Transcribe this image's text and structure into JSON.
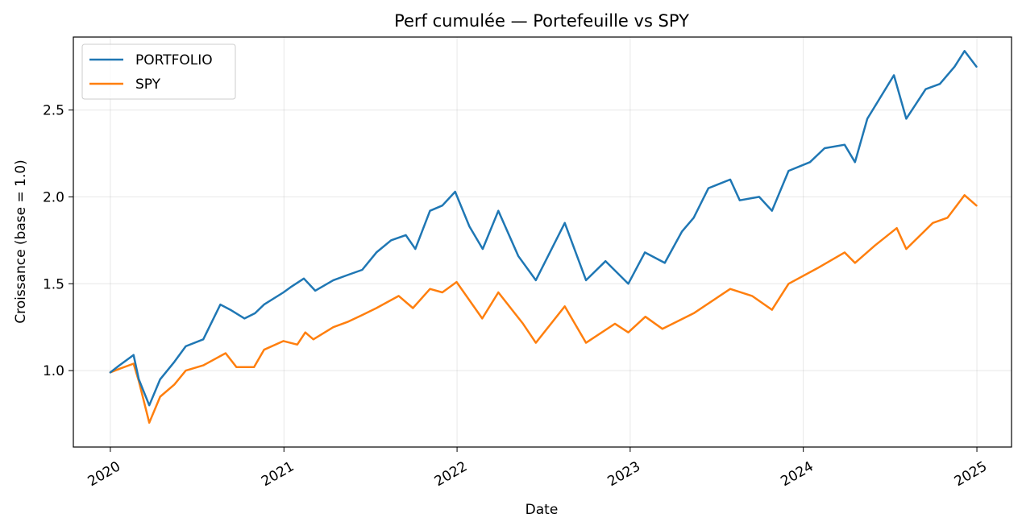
{
  "chart_data": {
    "type": "line",
    "title": "Perf cumulée — Portefeuille vs SPY",
    "xlabel": "Date",
    "ylabel": "Croissance (base = 1.0)",
    "xlim": [
      "2019-10-15",
      "2025-03-15"
    ],
    "ylim": [
      0.56,
      2.92
    ],
    "grid": true,
    "legend_position": "top-left",
    "x_ticks": [
      "2020",
      "2021",
      "2022",
      "2023",
      "2024",
      "2025"
    ],
    "y_ticks": [
      "1.0",
      "1.5",
      "2.0",
      "2.5"
    ],
    "series": [
      {
        "name": "PORTFOLIO",
        "color": "#1f77b4",
        "points": [
          [
            "2020-01-01",
            0.99
          ],
          [
            "2020-01-20",
            1.03
          ],
          [
            "2020-02-19",
            1.09
          ],
          [
            "2020-03-01",
            0.95
          ],
          [
            "2020-03-23",
            0.8
          ],
          [
            "2020-04-15",
            0.95
          ],
          [
            "2020-05-15",
            1.05
          ],
          [
            "2020-06-08",
            1.14
          ],
          [
            "2020-07-15",
            1.18
          ],
          [
            "2020-08-20",
            1.38
          ],
          [
            "2020-09-10",
            1.35
          ],
          [
            "2020-10-10",
            1.3
          ],
          [
            "2020-11-01",
            1.33
          ],
          [
            "2020-11-20",
            1.38
          ],
          [
            "2020-12-31",
            1.45
          ],
          [
            "2021-01-15",
            1.48
          ],
          [
            "2021-02-12",
            1.53
          ],
          [
            "2021-03-08",
            1.46
          ],
          [
            "2021-04-15",
            1.52
          ],
          [
            "2021-05-15",
            1.55
          ],
          [
            "2021-06-15",
            1.58
          ],
          [
            "2021-07-15",
            1.68
          ],
          [
            "2021-08-15",
            1.75
          ],
          [
            "2021-09-15",
            1.78
          ],
          [
            "2021-10-05",
            1.7
          ],
          [
            "2021-11-05",
            1.92
          ],
          [
            "2021-12-01",
            1.95
          ],
          [
            "2021-12-28",
            2.03
          ],
          [
            "2022-01-27",
            1.83
          ],
          [
            "2022-02-24",
            1.7
          ],
          [
            "2022-03-29",
            1.92
          ],
          [
            "2022-05-10",
            1.66
          ],
          [
            "2022-06-16",
            1.52
          ],
          [
            "2022-08-16",
            1.85
          ],
          [
            "2022-09-30",
            1.52
          ],
          [
            "2022-11-10",
            1.63
          ],
          [
            "2022-12-28",
            1.5
          ],
          [
            "2023-02-01",
            1.68
          ],
          [
            "2023-03-15",
            1.62
          ],
          [
            "2023-04-20",
            1.8
          ],
          [
            "2023-05-15",
            1.88
          ],
          [
            "2023-06-15",
            2.05
          ],
          [
            "2023-07-31",
            2.1
          ],
          [
            "2023-08-20",
            1.98
          ],
          [
            "2023-09-30",
            2.0
          ],
          [
            "2023-10-27",
            1.92
          ],
          [
            "2023-12-01",
            2.15
          ],
          [
            "2024-01-15",
            2.2
          ],
          [
            "2024-02-15",
            2.28
          ],
          [
            "2024-03-28",
            2.3
          ],
          [
            "2024-04-19",
            2.2
          ],
          [
            "2024-05-15",
            2.45
          ],
          [
            "2024-07-10",
            2.7
          ],
          [
            "2024-08-05",
            2.45
          ],
          [
            "2024-09-15",
            2.62
          ],
          [
            "2024-10-15",
            2.65
          ],
          [
            "2024-11-15",
            2.75
          ],
          [
            "2024-12-06",
            2.84
          ],
          [
            "2024-12-31",
            2.75
          ]
        ]
      },
      {
        "name": "SPY",
        "color": "#ff7f0e",
        "points": [
          [
            "2020-01-01",
            0.99
          ],
          [
            "2020-01-20",
            1.01
          ],
          [
            "2020-02-19",
            1.04
          ],
          [
            "2020-03-01",
            0.94
          ],
          [
            "2020-03-23",
            0.7
          ],
          [
            "2020-04-15",
            0.85
          ],
          [
            "2020-05-15",
            0.92
          ],
          [
            "2020-06-08",
            1.0
          ],
          [
            "2020-07-15",
            1.03
          ],
          [
            "2020-08-31",
            1.1
          ],
          [
            "2020-09-23",
            1.02
          ],
          [
            "2020-10-30",
            1.02
          ],
          [
            "2020-11-20",
            1.12
          ],
          [
            "2020-12-31",
            1.17
          ],
          [
            "2021-01-29",
            1.15
          ],
          [
            "2021-02-15",
            1.22
          ],
          [
            "2021-03-04",
            1.18
          ],
          [
            "2021-04-15",
            1.25
          ],
          [
            "2021-05-15",
            1.28
          ],
          [
            "2021-06-15",
            1.32
          ],
          [
            "2021-07-15",
            1.36
          ],
          [
            "2021-08-31",
            1.43
          ],
          [
            "2021-09-30",
            1.36
          ],
          [
            "2021-11-05",
            1.47
          ],
          [
            "2021-12-01",
            1.45
          ],
          [
            "2021-12-31",
            1.51
          ],
          [
            "2022-02-23",
            1.3
          ],
          [
            "2022-03-29",
            1.45
          ],
          [
            "2022-05-20",
            1.27
          ],
          [
            "2022-06-16",
            1.16
          ],
          [
            "2022-08-16",
            1.37
          ],
          [
            "2022-09-30",
            1.16
          ],
          [
            "2022-11-30",
            1.27
          ],
          [
            "2022-12-28",
            1.22
          ],
          [
            "2023-02-02",
            1.31
          ],
          [
            "2023-03-10",
            1.24
          ],
          [
            "2023-05-15",
            1.33
          ],
          [
            "2023-07-31",
            1.47
          ],
          [
            "2023-09-15",
            1.43
          ],
          [
            "2023-10-27",
            1.35
          ],
          [
            "2023-12-01",
            1.5
          ],
          [
            "2024-01-31",
            1.59
          ],
          [
            "2024-03-28",
            1.68
          ],
          [
            "2024-04-19",
            1.62
          ],
          [
            "2024-05-31",
            1.72
          ],
          [
            "2024-07-16",
            1.82
          ],
          [
            "2024-08-05",
            1.7
          ],
          [
            "2024-09-30",
            1.85
          ],
          [
            "2024-10-31",
            1.88
          ],
          [
            "2024-12-06",
            2.01
          ],
          [
            "2024-12-31",
            1.95
          ]
        ]
      }
    ]
  }
}
